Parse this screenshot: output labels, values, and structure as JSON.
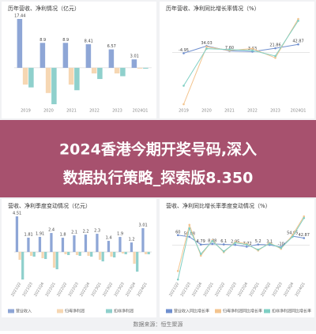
{
  "chart_data": [
    {
      "type": "bar",
      "title": "历年营收、净利情况（亿元）",
      "categories": [
        "2019",
        "2020",
        "2021",
        "2022",
        "2023",
        "2024Q1"
      ],
      "series": [
        {
          "color": "#8ea6d6",
          "values": [
            17.44,
            8.9,
            8.9,
            8.41,
            6.57,
            3.01
          ],
          "value_labels": [
            "17.44",
            "8.9",
            "8.9",
            "8.41",
            "6.57",
            "3.01"
          ]
        },
        {
          "color": "#f6d7b3",
          "values": [
            -6,
            -9,
            -6,
            -2,
            -2,
            -0.3
          ]
        },
        {
          "color": "#8fd0cc",
          "values": [
            -7,
            -13,
            -8,
            -4,
            -3,
            -0.3
          ]
        }
      ]
    },
    {
      "type": "line",
      "title": "历年营收、净利同比增长率情况（%）",
      "categories": [
        "2019",
        "2020",
        "2021",
        "2022",
        "2023",
        "2024Q1"
      ],
      "series": [
        {
          "color": "#6f8fcf",
          "values": [
            -4.95,
            34.03,
            7.6,
            3.63,
            21.86,
            42.87
          ],
          "value_labels": [
            "-4.95",
            "34.03",
            "7.60",
            "3.63",
            "21.86",
            "42.87"
          ]
        },
        {
          "color": "#f3c48e",
          "values": [
            -280,
            30,
            10,
            20,
            -30,
            180
          ]
        },
        {
          "color": "#7fcfc4",
          "values": [
            -180,
            20,
            15,
            10,
            -20,
            170
          ]
        }
      ]
    },
    {
      "type": "bar",
      "title": "营收、净利季度变动情况（亿元）",
      "categories": [
        "2021Q2",
        "2021Q3",
        "2021Q4",
        "2022Q1",
        "2022Q2",
        "2022Q3",
        "2022Q4",
        "2023Q1",
        "2023Q2",
        "2023Q3",
        "2023Q4",
        "2024Q1"
      ],
      "series": [
        {
          "name": "营业收入",
          "color": "#8ea6d6",
          "values": [
            4.51,
            1.81,
            1.91,
            2.4,
            1.8,
            2.1,
            2.2,
            2.3,
            1.4,
            1.9,
            1.2,
            3.01
          ],
          "value_labels": [
            "4.51",
            "1.81",
            "1.91",
            "2.4",
            "1.8",
            "2.1",
            "2.2",
            "2.3",
            "1.4",
            "1.9",
            "1.2",
            "3.01"
          ]
        },
        {
          "name": "归母净利润",
          "color": "#f6d7b3",
          "values": [
            -1,
            -0.5,
            -0.8,
            -2,
            -0.3,
            -0.4,
            -0.5,
            -1,
            -0.6,
            -0.2,
            -1.5,
            -0.3
          ]
        },
        {
          "name": "扣非净利润",
          "color": "#8fd0cc",
          "values": [
            -3.5,
            -0.6,
            -0.9,
            -2.2,
            -0.4,
            -0.5,
            -0.6,
            -1.2,
            -0.7,
            -0.3,
            -2.5,
            -0.3
          ]
        }
      ]
    },
    {
      "type": "line",
      "title": "营收、净利同比增长率季度变动情况（%）",
      "categories": [
        "2021Q2",
        "2021Q3",
        "2021Q4",
        "2022Q1",
        "2022Q2",
        "2022Q3",
        "2022Q4",
        "2023Q1",
        "2023Q2",
        "2023Q3",
        "2023Q4",
        "2024Q1"
      ],
      "series": [
        {
          "name": "营业收入同比增长率",
          "color": "#6f8fcf",
          "values": [
            60,
            50.08,
            4.79,
            8.88,
            6.1,
            2.95,
            -7.72,
            5.2,
            3.1,
            -10,
            54.05,
            42.87
          ],
          "value_labels": [
            "60",
            "50.08",
            "4.79",
            "8.88",
            "6.1",
            "2.95",
            "-7.72",
            "5.2",
            "3.1",
            "-10",
            "54.05",
            "42.87"
          ]
        },
        {
          "name": "归母净利润同比增长率",
          "color": "#f3c48e",
          "values": [
            -150,
            120,
            -60,
            30,
            -40,
            20,
            10,
            -30,
            15,
            -20,
            60,
            170
          ]
        },
        {
          "name": "扣非净利润同比增长率",
          "color": "#7fcfc4",
          "values": [
            -200,
            100,
            -50,
            25,
            -35,
            15,
            5,
            -25,
            10,
            -15,
            50,
            160
          ]
        }
      ]
    }
  ],
  "banner": {
    "lines": [
      "2024香港今期开奖号码,深入",
      "数据执行策略_探索版8.350"
    ]
  },
  "footer": "数据来源：恒生聚源"
}
